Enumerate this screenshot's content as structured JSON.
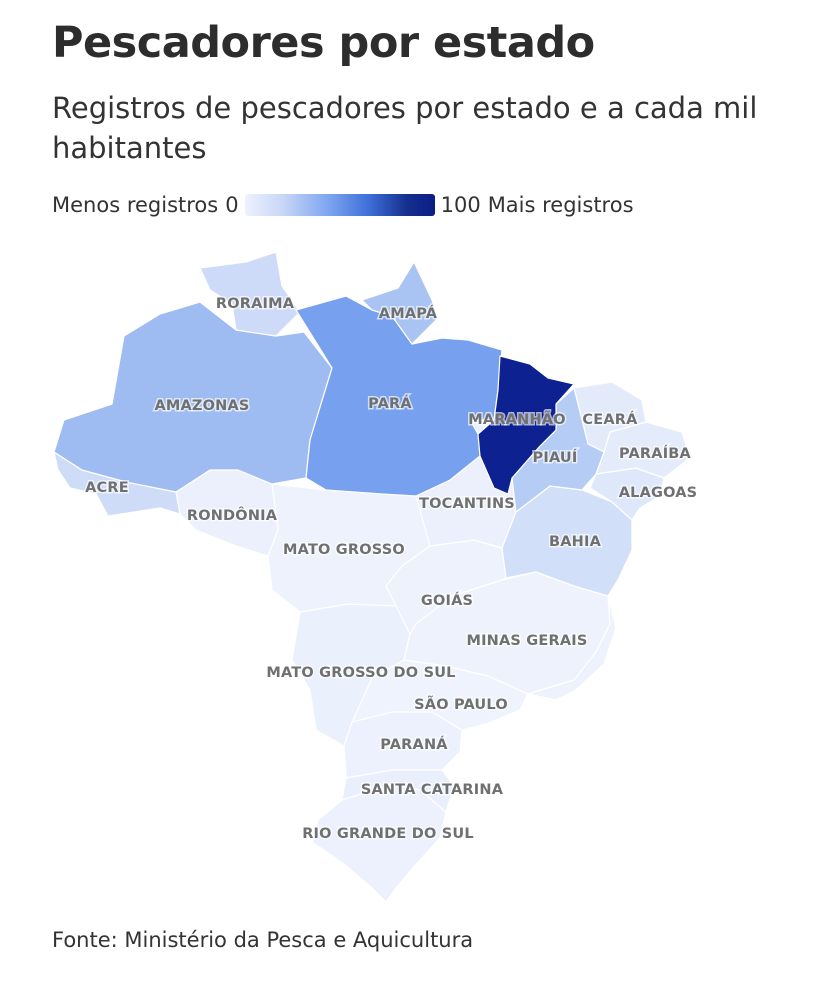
{
  "title": "Pescadores por estado",
  "subtitle": "Registros de pescadores por estado e a cada mil habitantes",
  "legend": {
    "min_label": "Menos registros",
    "min_value": "0",
    "max_value": "100",
    "max_label": "Mais registros",
    "gradient_start": "#eef2fd",
    "gradient_end": "#0b1d84"
  },
  "states": [
    {
      "name": "RORAIMA",
      "color": "#cddbf8"
    },
    {
      "name": "AMAPÁ",
      "color": "#a9c3f3"
    },
    {
      "name": "AMAZONAS",
      "color": "#9fbcf2"
    },
    {
      "name": "PARÁ",
      "color": "#77a1ef"
    },
    {
      "name": "ACRE",
      "color": "#cfdcf8"
    },
    {
      "name": "MARANHÃO",
      "color": "#0d2190"
    },
    {
      "name": "CEARÁ",
      "color": "#e3ebfb"
    },
    {
      "name": "PIAUÍ",
      "color": "#b5ccf5"
    },
    {
      "name": "PARAÍBA",
      "color": "#e4ecfb"
    },
    {
      "name": "ALAGOAS",
      "color": "#dfe8fb"
    },
    {
      "name": "TOCANTINS",
      "color": "#ebf0fc"
    },
    {
      "name": "RONDÔNIA",
      "color": "#ebf0fc"
    },
    {
      "name": "BAHIA",
      "color": "#d2dff9"
    },
    {
      "name": "MATO GROSSO",
      "color": "#edf2fd"
    },
    {
      "name": "GOIÁS",
      "color": "#eef2fd"
    },
    {
      "name": "MINAS GERAIS",
      "color": "#eef2fd"
    },
    {
      "name": "MATO GROSSO DO SUL",
      "color": "#eaf0fc"
    },
    {
      "name": "SÃO PAULO",
      "color": "#eff3fd"
    },
    {
      "name": "PARANÁ",
      "color": "#ecf1fd"
    },
    {
      "name": "SANTA CATARINA",
      "color": "#e9effc"
    },
    {
      "name": "RIO GRANDE DO SUL",
      "color": "#ecf1fd"
    }
  ],
  "source": "Fonte: Ministério da Pesca e Aquicultura"
}
